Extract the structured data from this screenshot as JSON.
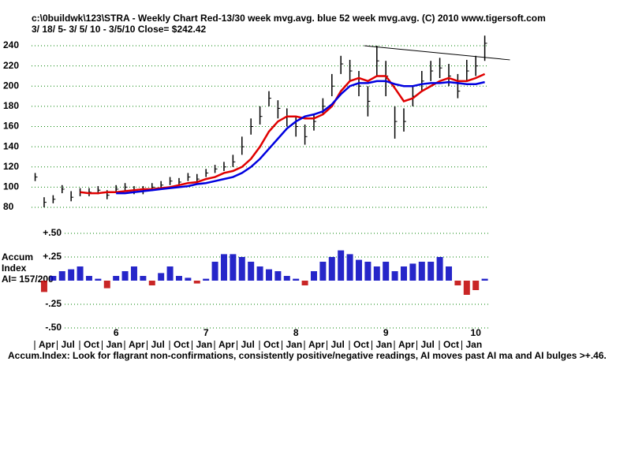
{
  "chart_data": {
    "type": "ohlc",
    "title": "c:\\0buildwk\\123\\STRA  - Weekly Chart  Red-13/30 week mvg.avg.  blue 52 week mvg.avg.  (C) 2010 www.tigersoft.com",
    "subtitle": " 3/ 18/ 5- 3/ 5/ 10 - 3/5/10    Close= $242.42",
    "x": [
      2005.1,
      2005.2,
      2005.3,
      2005.4,
      2005.5,
      2005.6,
      2005.7,
      2005.8,
      2005.9,
      2006.0,
      2006.1,
      2006.2,
      2006.3,
      2006.4,
      2006.5,
      2006.6,
      2006.7,
      2006.8,
      2006.9,
      2007.0,
      2007.1,
      2007.2,
      2007.3,
      2007.4,
      2007.5,
      2007.6,
      2007.7,
      2007.8,
      2007.9,
      2008.0,
      2008.1,
      2008.2,
      2008.3,
      2008.4,
      2008.5,
      2008.6,
      2008.7,
      2008.8,
      2008.9,
      2009.0,
      2009.1,
      2009.2,
      2009.3,
      2009.4,
      2009.5,
      2009.6,
      2009.7,
      2009.8,
      2009.9,
      2010.0,
      2010.1
    ],
    "xlim": [
      2005.06,
      2010.2
    ],
    "ylim": [
      80,
      240
    ],
    "yticks": [
      80,
      100,
      120,
      140,
      160,
      180,
      200,
      220,
      240
    ],
    "xticks": [
      {
        "value": 2006.0,
        "label": "6"
      },
      {
        "value": 2007.0,
        "label": "7"
      },
      {
        "value": 2008.0,
        "label": "8"
      },
      {
        "value": 2009.0,
        "label": "9"
      },
      {
        "value": 2010.0,
        "label": "10"
      }
    ],
    "months": [
      "Apr",
      "Jul",
      "Oct",
      "Jan",
      "Apr",
      "Jul",
      "Oct",
      "Jan",
      "Apr",
      "Jul",
      "Oct",
      "Jan",
      "Apr",
      "Jul",
      "Oct",
      "Jan",
      "Apr",
      "Jul",
      "Oct",
      "Jan"
    ],
    "high": [
      114,
      90,
      92,
      102,
      96,
      99,
      99,
      101,
      97,
      102,
      104,
      101,
      101,
      104,
      106,
      110,
      109,
      114,
      113,
      118,
      122,
      125,
      132,
      150,
      168,
      180,
      195,
      186,
      178,
      170,
      162,
      172,
      188,
      212,
      230,
      226,
      215,
      200,
      240,
      225,
      180,
      178,
      200,
      215,
      225,
      228,
      222,
      212,
      226,
      230,
      250
    ],
    "low": [
      106,
      80,
      84,
      94,
      86,
      91,
      91,
      93,
      88,
      94,
      96,
      93,
      93,
      96,
      98,
      102,
      101,
      106,
      104,
      110,
      114,
      116,
      120,
      132,
      152,
      162,
      180,
      168,
      160,
      150,
      142,
      156,
      172,
      190,
      212,
      205,
      190,
      170,
      210,
      190,
      148,
      155,
      180,
      195,
      205,
      208,
      200,
      188,
      205,
      210,
      225
    ],
    "close": [
      110,
      85,
      88,
      98,
      90,
      95,
      95,
      97,
      92,
      98,
      100,
      97,
      97,
      100,
      102,
      106,
      105,
      110,
      108,
      114,
      118,
      120,
      125,
      140,
      160,
      170,
      188,
      178,
      170,
      160,
      150,
      165,
      180,
      200,
      222,
      215,
      200,
      185,
      225,
      210,
      165,
      165,
      190,
      205,
      215,
      218,
      210,
      195,
      215,
      220,
      242.42
    ],
    "series": [
      {
        "name": "Red-13/30 week mvg.avg.",
        "color": "#e00000",
        "values": [
          null,
          null,
          null,
          null,
          null,
          95,
          94,
          94,
          95,
          95,
          96,
          97,
          98,
          98,
          99,
          100,
          102,
          104,
          105,
          108,
          110,
          114,
          116,
          120,
          128,
          140,
          155,
          165,
          170,
          170,
          168,
          168,
          172,
          180,
          195,
          205,
          208,
          205,
          210,
          210,
          198,
          185,
          188,
          195,
          200,
          205,
          208,
          205,
          205,
          208,
          212
        ]
      },
      {
        "name": "blue 52 week mvg.avg.",
        "color": "#0000e0",
        "values": [
          null,
          null,
          null,
          null,
          null,
          null,
          null,
          null,
          null,
          94,
          94,
          95,
          96,
          97,
          98,
          99,
          100,
          101,
          103,
          104,
          106,
          108,
          110,
          114,
          120,
          128,
          138,
          148,
          158,
          165,
          170,
          172,
          175,
          182,
          192,
          200,
          203,
          203,
          205,
          205,
          202,
          200,
          200,
          202,
          203,
          203,
          204,
          203,
          202,
          202,
          204
        ]
      }
    ],
    "trendline": [
      [
        2008.76,
        240
      ],
      [
        2010.38,
        226
      ]
    ],
    "accum": {
      "label1": "Accum",
      "label2": "Index",
      "ai": "AI= 157/200",
      "ylim": [
        -0.55,
        0.55
      ],
      "yticks": [
        {
          "value": 0.5,
          "label": "+.50"
        },
        {
          "value": 0.25,
          "label": "+.25"
        },
        {
          "value": -0.25,
          "label": "-.25"
        },
        {
          "value": -0.5,
          "label": "-.50"
        }
      ],
      "pos_color": "#0000c0",
      "neg_color": "#c00000",
      "values": [
        null,
        -0.12,
        0.05,
        0.1,
        0.12,
        0.15,
        0.05,
        0.02,
        -0.08,
        0.05,
        0.1,
        0.15,
        0.05,
        -0.05,
        0.08,
        0.15,
        0.05,
        0.03,
        -0.03,
        0.02,
        0.2,
        0.28,
        0.28,
        0.25,
        0.2,
        0.15,
        0.12,
        0.1,
        0.05,
        0.02,
        -0.05,
        0.1,
        0.2,
        0.25,
        0.32,
        0.28,
        0.22,
        0.2,
        0.15,
        0.2,
        0.1,
        0.15,
        0.18,
        0.2,
        0.2,
        0.25,
        0.15,
        -0.05,
        -0.15,
        -0.1,
        0.02
      ]
    },
    "note": "Accum.Index: Look for flagrant non-confirmations, consistently positive/negative readings, AI moves past AI ma and AI bulges >+.46.",
    "grid": true,
    "grid_color": "#008000"
  }
}
